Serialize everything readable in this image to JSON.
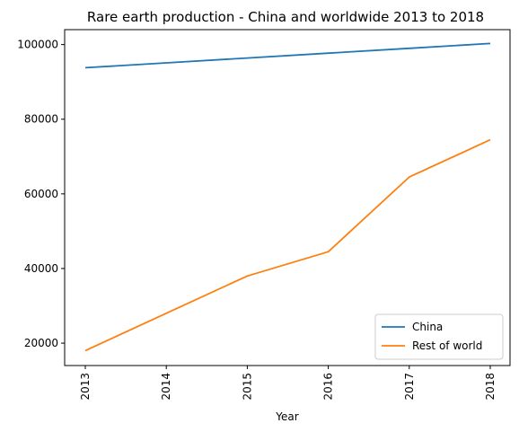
{
  "chart_data": {
    "type": "line",
    "title": "Rare earth production - China and worldwide 2013 to 2018",
    "xlabel": "Year",
    "ylabel": "",
    "x": [
      "2013",
      "2014",
      "2015",
      "2016",
      "2017",
      "2018"
    ],
    "ylim": [
      14000,
      104000
    ],
    "yticks": [
      20000,
      40000,
      60000,
      80000,
      100000
    ],
    "series": [
      {
        "name": "China",
        "color": "#1f77b4",
        "values": [
          93800,
          95100,
          96400,
          97700,
          99000,
          100300
        ]
      },
      {
        "name": "Rest of world",
        "color": "#ff7f0e",
        "values": [
          18000,
          28000,
          38000,
          44500,
          64500,
          74500
        ]
      }
    ],
    "legend_position": "lower-right",
    "grid": false
  }
}
